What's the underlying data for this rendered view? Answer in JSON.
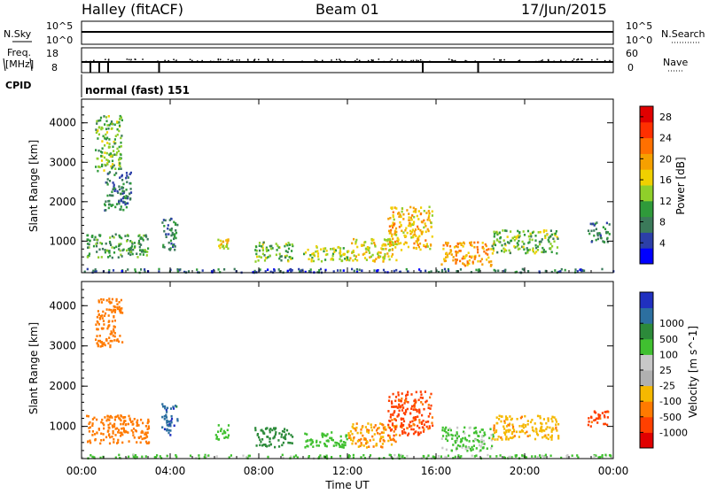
{
  "header": {
    "station": "Halley (fitACF)",
    "beam": "Beam 01",
    "date": "17/Jun/2015"
  },
  "top_panels": {
    "nsky_label": "N.Sky",
    "nsearch_label": "N.Search",
    "nsky_scale_top": "10^5",
    "nsky_scale_bottom": "10^0",
    "nsearch_scale_top": "10^5",
    "nsearch_scale_bottom": "10^0",
    "freq_label_1": "Freq.",
    "freq_label_2": "[MHz]",
    "freq_scale_top": "18",
    "freq_scale_bottom": "8",
    "nave_label": "Nave",
    "nave_scale_top": "60",
    "nave_scale_bottom": "0",
    "cpid_label": "CPID",
    "cpid_text": "normal (fast) 151"
  },
  "colors": {
    "power_scale": [
      "#0000ff",
      "#2c3fa8",
      "#3b7a5a",
      "#2f9a3a",
      "#8fcf2a",
      "#f0d000",
      "#f5a000",
      "#ff7000",
      "#ff3000",
      "#e00000"
    ],
    "velocity_scale": [
      "#e00000",
      "#ff4000",
      "#ff7a00",
      "#f5b800",
      "#b0b0b0",
      "#c8c8c8",
      "#40c030",
      "#2c8a3a",
      "#2c6fa0",
      "#2030c0"
    ]
  },
  "chart_data": [
    {
      "type": "heatmap",
      "panel": "power",
      "xlabel": "",
      "ylabel": "Slant Range [km]",
      "x_ticks": [
        "00:00",
        "04:00",
        "08:00",
        "12:00",
        "16:00",
        "20:00",
        "00:00"
      ],
      "y_ticks": [
        "1000",
        "2000",
        "3000",
        "4000"
      ],
      "ylim": [
        200,
        4600
      ],
      "xlim": [
        0,
        24
      ],
      "colorbar_label": "Power [dB]",
      "colorbar_ticks": [
        "4",
        "8",
        "12",
        "16",
        "20",
        "24",
        "28"
      ],
      "clim": [
        0,
        30
      ],
      "regions": [
        {
          "t0": 0.6,
          "t1": 1.8,
          "r0": 2800,
          "r1": 4200,
          "v": 12
        },
        {
          "t0": 1.0,
          "t1": 2.2,
          "r0": 1800,
          "r1": 2800,
          "v": 8
        },
        {
          "t0": 0.2,
          "t1": 3.0,
          "r0": 600,
          "r1": 1200,
          "v": 10
        },
        {
          "t0": 3.6,
          "t1": 4.3,
          "r0": 800,
          "r1": 1600,
          "v": 8
        },
        {
          "t0": 6.0,
          "t1": 6.6,
          "r0": 800,
          "r1": 1100,
          "v": 16
        },
        {
          "t0": 7.8,
          "t1": 9.5,
          "r0": 500,
          "r1": 1000,
          "v": 12
        },
        {
          "t0": 10.0,
          "t1": 12.0,
          "r0": 500,
          "r1": 900,
          "v": 14
        },
        {
          "t0": 12.0,
          "t1": 14.2,
          "r0": 500,
          "r1": 1100,
          "v": 16
        },
        {
          "t0": 13.8,
          "t1": 15.8,
          "r0": 800,
          "r1": 1900,
          "v": 18
        },
        {
          "t0": 16.2,
          "t1": 18.6,
          "r0": 400,
          "r1": 1000,
          "v": 20
        },
        {
          "t0": 18.5,
          "t1": 21.5,
          "r0": 700,
          "r1": 1300,
          "v": 12
        },
        {
          "t0": 22.8,
          "t1": 23.8,
          "r0": 1000,
          "r1": 1500,
          "v": 8
        },
        {
          "t0": 0.0,
          "t1": 24.0,
          "r0": 230,
          "r1": 320,
          "v": 6
        }
      ]
    },
    {
      "type": "heatmap",
      "panel": "velocity",
      "xlabel": "Time UT",
      "ylabel": "Slant Range [km]",
      "x_ticks": [
        "00:00",
        "04:00",
        "08:00",
        "12:00",
        "16:00",
        "20:00",
        "00:00"
      ],
      "y_ticks": [
        "1000",
        "2000",
        "3000",
        "4000"
      ],
      "ylim": [
        200,
        4600
      ],
      "xlim": [
        0,
        24
      ],
      "colorbar_label": "Velocity [m s^-1]",
      "colorbar_ticks": [
        "-1000",
        "-500",
        "-100",
        "-25",
        "25",
        "100",
        "500",
        "1000"
      ],
      "regions": [
        {
          "t0": 0.6,
          "t1": 1.8,
          "r0": 3000,
          "r1": 4200,
          "v": -300
        },
        {
          "t0": 0.2,
          "t1": 3.0,
          "r0": 600,
          "r1": 1300,
          "v": -300
        },
        {
          "t0": 3.6,
          "t1": 4.3,
          "r0": 800,
          "r1": 1600,
          "v": 800
        },
        {
          "t0": 6.0,
          "t1": 6.6,
          "r0": 700,
          "r1": 1100,
          "v": 50
        },
        {
          "t0": 7.8,
          "t1": 9.5,
          "r0": 500,
          "r1": 1000,
          "v": 200
        },
        {
          "t0": 10.0,
          "t1": 12.0,
          "r0": 500,
          "r1": 900,
          "v": 60
        },
        {
          "t0": 12.0,
          "t1": 14.2,
          "r0": 500,
          "r1": 1100,
          "v": -100
        },
        {
          "t0": 13.8,
          "t1": 15.8,
          "r0": 800,
          "r1": 1900,
          "v": -700
        },
        {
          "t0": 16.2,
          "t1": 18.6,
          "r0": 400,
          "r1": 1000,
          "v": 30
        },
        {
          "t0": 18.5,
          "t1": 21.5,
          "r0": 700,
          "r1": 1300,
          "v": -80
        },
        {
          "t0": 22.8,
          "t1": 23.8,
          "r0": 1000,
          "r1": 1400,
          "v": -600
        },
        {
          "t0": 0.0,
          "t1": 24.0,
          "r0": 230,
          "r1": 320,
          "v": 30
        }
      ]
    }
  ]
}
